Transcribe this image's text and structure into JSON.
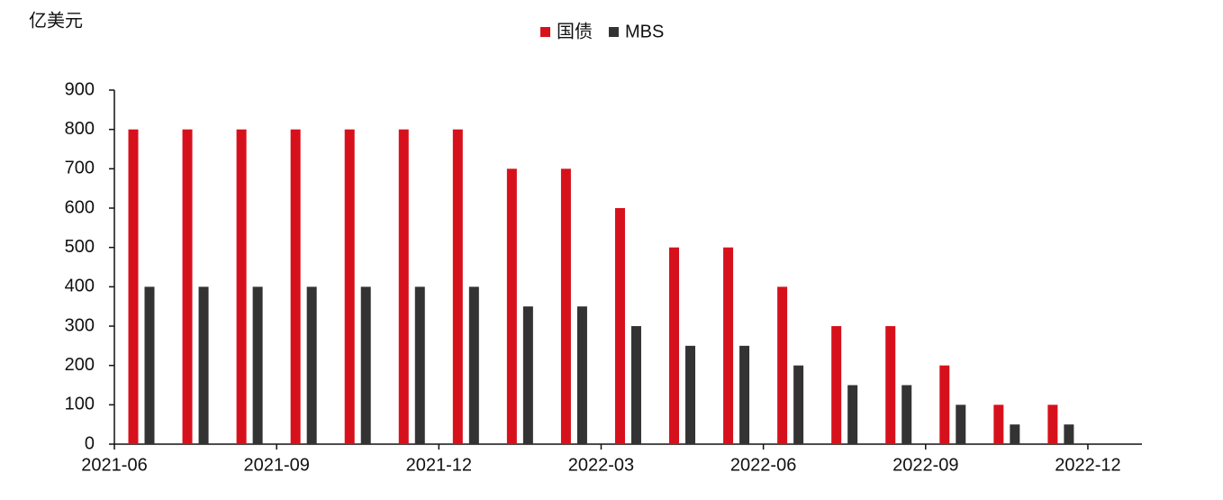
{
  "chart_data": {
    "type": "bar",
    "unit_label": "亿美元",
    "categories": [
      "2021-06",
      null,
      null,
      "2021-09",
      null,
      null,
      "2021-12",
      null,
      null,
      "2022-03",
      null,
      null,
      "2022-06",
      null,
      null,
      "2022-09",
      null,
      null,
      "2022-12"
    ],
    "series": [
      {
        "name": "国债",
        "color": "#d7111c",
        "values": [
          800,
          800,
          800,
          800,
          800,
          800,
          800,
          700,
          700,
          600,
          500,
          500,
          400,
          300,
          300,
          200,
          100,
          100,
          null
        ]
      },
      {
        "name": "MBS",
        "color": "#333333",
        "values": [
          400,
          400,
          400,
          400,
          400,
          400,
          400,
          350,
          350,
          300,
          250,
          250,
          200,
          150,
          150,
          100,
          50,
          50,
          null
        ]
      }
    ],
    "ylim": [
      0,
      900
    ],
    "yticks": [
      0,
      100,
      200,
      300,
      400,
      500,
      600,
      700,
      800,
      900
    ],
    "grid": false,
    "legend": "top"
  }
}
